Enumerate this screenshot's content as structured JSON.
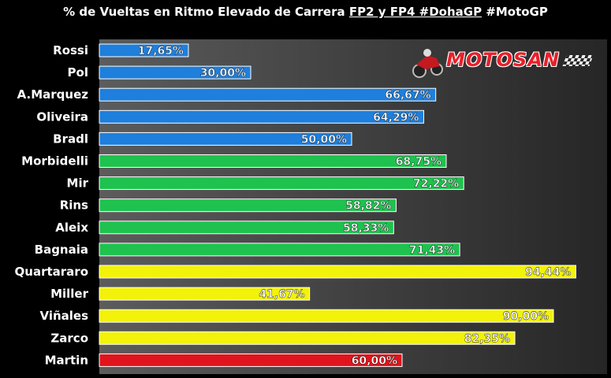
{
  "title": {
    "prefix": "% de Vueltas en Ritmo Elevado de Carrera ",
    "underlined": "FP2 y FP4 #DohaGP",
    "suffix": " #MotoGP"
  },
  "logo": {
    "text": "MOTOSAN"
  },
  "chart_data": {
    "type": "bar",
    "orientation": "horizontal",
    "categories": [
      "Rossi",
      "Pol",
      "A.Marquez",
      "Oliveira",
      "Bradl",
      "Morbidelli",
      "Mir",
      "Rins",
      "Aleix",
      "Bagnaia",
      "Quartararo",
      "Miller",
      "Viñales",
      "Zarco",
      "Martin"
    ],
    "values": [
      17.65,
      30.0,
      66.67,
      64.29,
      50.0,
      68.75,
      72.22,
      58.82,
      58.33,
      71.43,
      94.44,
      41.67,
      90.0,
      82.35,
      60.0
    ],
    "labels": [
      "17,65%",
      "30,00%",
      "66,67%",
      "64,29%",
      "50,00%",
      "68,75%",
      "72,22%",
      "58,82%",
      "58,33%",
      "71,43%",
      "94,44%",
      "41,67%",
      "90,00%",
      "82,35%",
      "60,00%"
    ],
    "colors": [
      "#1e7fdc",
      "#1e7fdc",
      "#1e7fdc",
      "#1e7fdc",
      "#1e7fdc",
      "#1fc24f",
      "#1fc24f",
      "#1fc24f",
      "#1fc24f",
      "#1fc24f",
      "#f2f20a",
      "#f2f20a",
      "#f2f20a",
      "#f2f20a",
      "#e0141c"
    ],
    "xlim": [
      0,
      100
    ],
    "grid": false,
    "legend": "none"
  }
}
